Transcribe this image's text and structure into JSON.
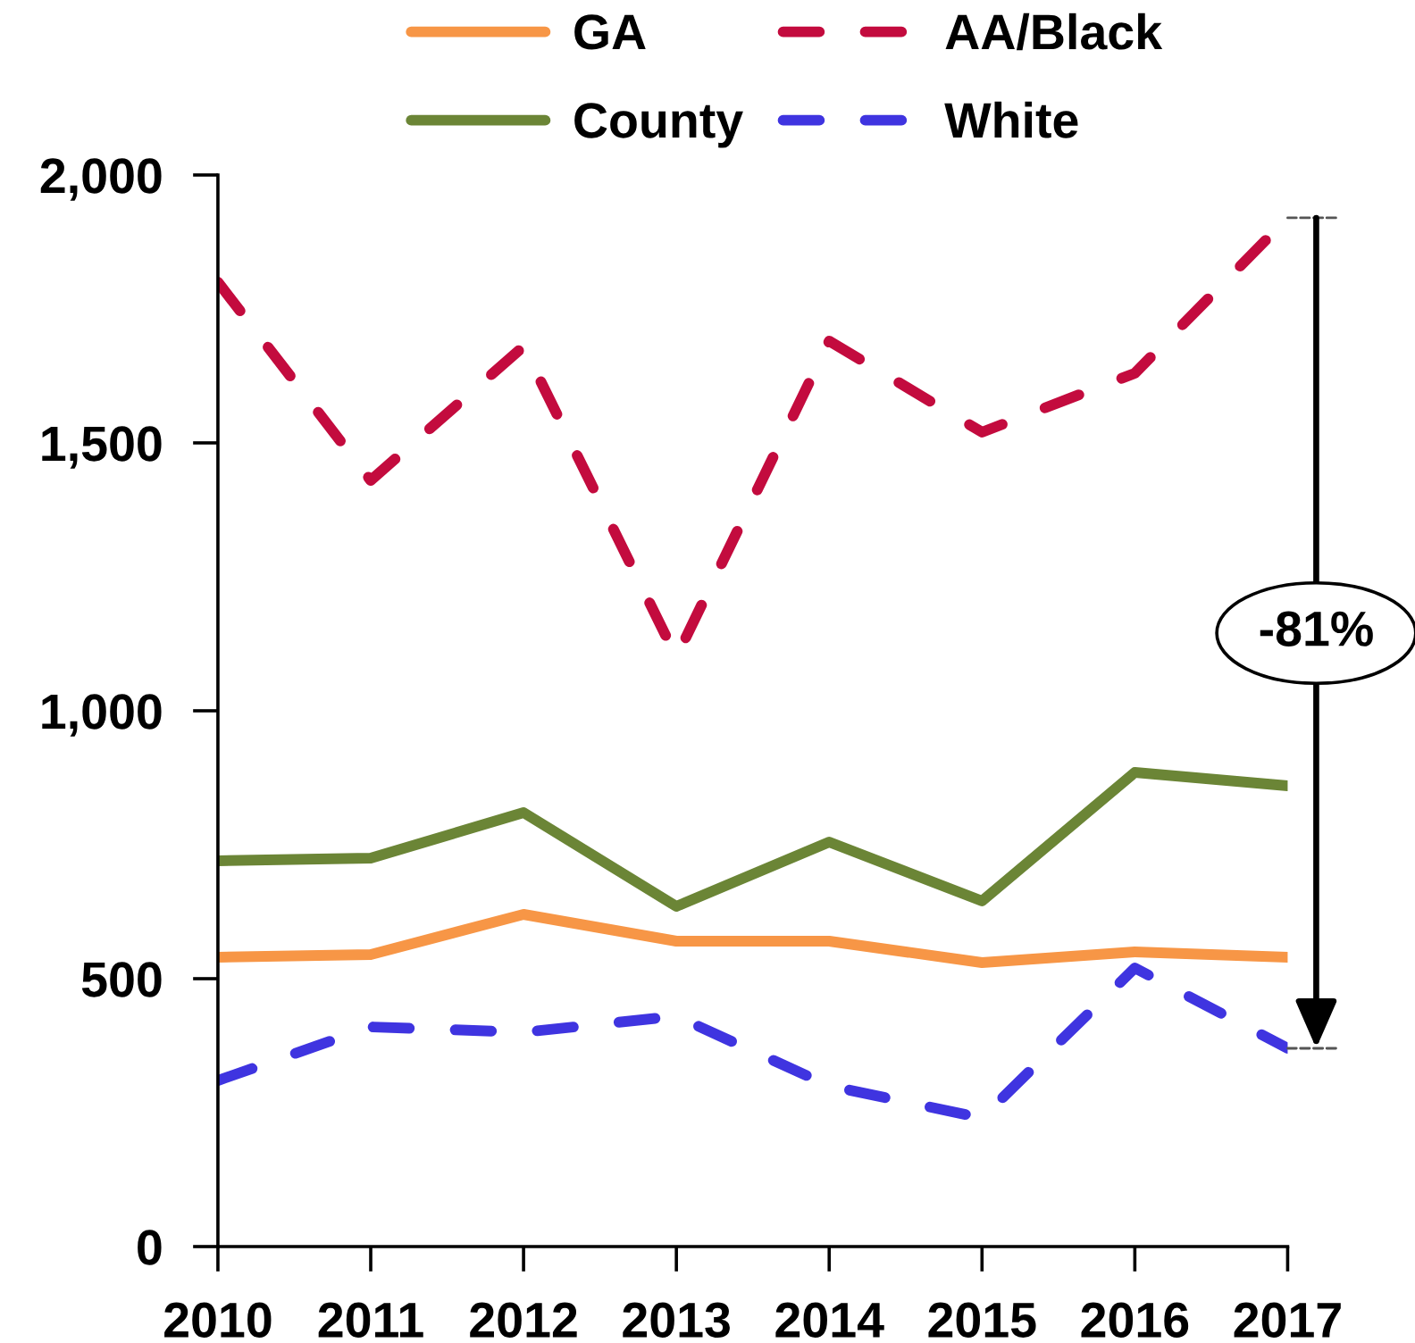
{
  "chart_data": {
    "type": "line",
    "x": [
      2010,
      2011,
      2012,
      2013,
      2014,
      2015,
      2016,
      2017
    ],
    "series": [
      {
        "name": "GA",
        "color": "#f79646",
        "line_style": "solid",
        "values": [
          540,
          545,
          620,
          570,
          570,
          530,
          550,
          540
        ]
      },
      {
        "name": "AA/Black",
        "color": "#c30b3e",
        "line_style": "dashed",
        "values": [
          1800,
          1430,
          1680,
          1100,
          1690,
          1520,
          1630,
          1920
        ]
      },
      {
        "name": "County",
        "color": "#6b8536",
        "line_style": "solid",
        "values": [
          720,
          725,
          810,
          635,
          755,
          645,
          885,
          860
        ]
      },
      {
        "name": "White",
        "color": "#3f34e0",
        "line_style": "dashed",
        "values": [
          310,
          410,
          400,
          430,
          300,
          240,
          520,
          370
        ]
      }
    ],
    "xlim": [
      2010,
      2017
    ],
    "xticks": [
      2010,
      2011,
      2012,
      2013,
      2014,
      2015,
      2016,
      2017
    ],
    "ylim": [
      0,
      2000
    ],
    "yticks": [
      0,
      500,
      {
        "value": 1000,
        "label": "1,000"
      },
      {
        "value": 1500,
        "label": "1,500"
      },
      {
        "value": 2000,
        "label": "2,000"
      }
    ],
    "annotations": [
      "-81%"
    ],
    "legend": "top",
    "marker": "none",
    "grid": false
  }
}
